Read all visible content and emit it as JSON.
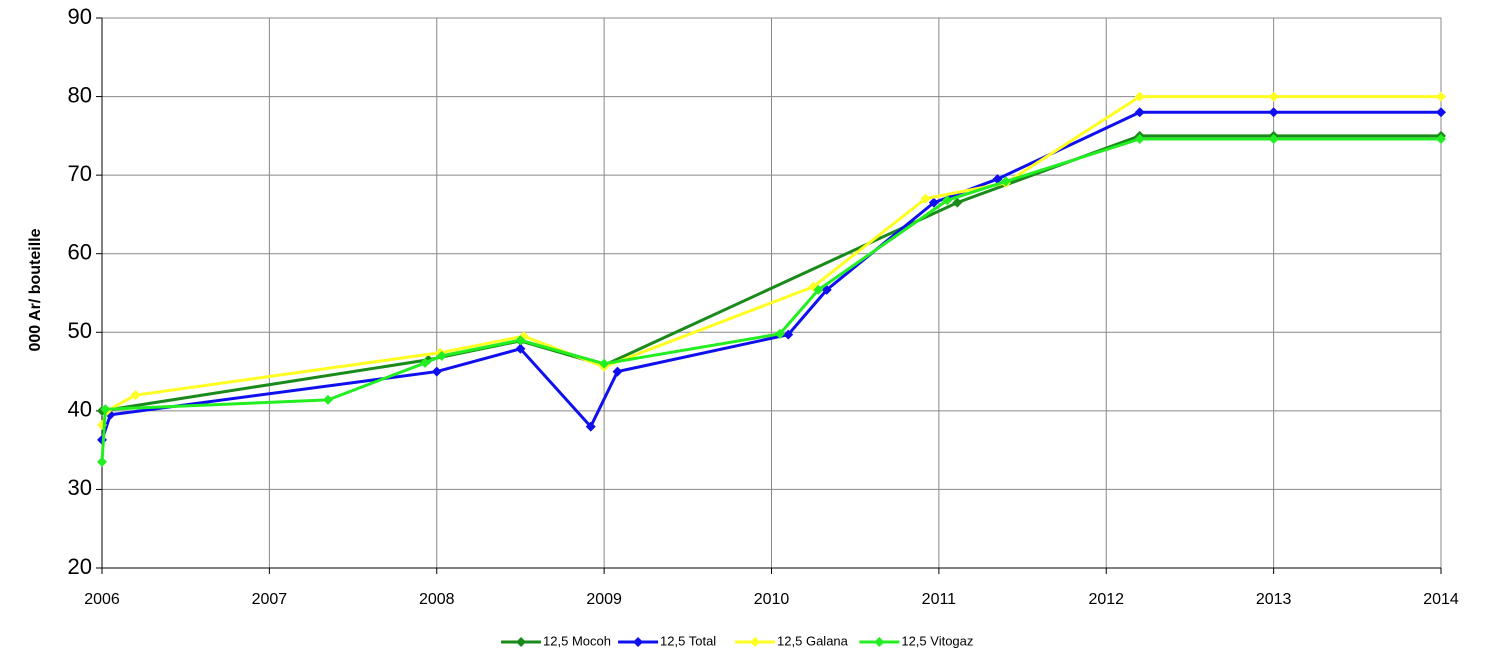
{
  "chart_data": {
    "type": "line",
    "ylabel": "000 Ar/ bouteille",
    "xlim": [
      2006,
      2014
    ],
    "xticks": [
      2006,
      2007,
      2008,
      2009,
      2010,
      2011,
      2012,
      2013,
      2014
    ],
    "ylim": [
      20,
      90
    ],
    "yticks": [
      20,
      30,
      40,
      50,
      60,
      70,
      80,
      90
    ],
    "grid": true,
    "legend": "bottom",
    "series": [
      {
        "name": "12,5 Mocoh",
        "color": "#1a8a1a",
        "x": [
          2006.0,
          2007.95,
          2008.5,
          2009.0,
          2011.11,
          2012.2,
          2013.0,
          2014.0
        ],
        "values": [
          40,
          46.5,
          48.9,
          45.8,
          66.5,
          75,
          75,
          75
        ]
      },
      {
        "name": "12,5 Total",
        "color": "#1010ee",
        "x": [
          2006.0,
          2006.05,
          2008.0,
          2008.5,
          2008.92,
          2009.08,
          2010.1,
          2010.33,
          2010.97,
          2011.35,
          2012.2,
          2013.0,
          2014.0
        ],
        "values": [
          36.3,
          39.5,
          45,
          47.9,
          38,
          45,
          49.7,
          55.4,
          66.5,
          69.5,
          78,
          78,
          78
        ]
      },
      {
        "name": "12,5 Galana",
        "color": "#ffff22",
        "x": [
          2006.0,
          2006.03,
          2006.2,
          2008.02,
          2008.52,
          2009.0,
          2010.25,
          2010.92,
          2011.4,
          2012.2,
          2013.0,
          2014.0
        ],
        "values": [
          38.2,
          40,
          42,
          47.4,
          49.5,
          45.6,
          55.8,
          67,
          69,
          80,
          80,
          80
        ]
      },
      {
        "name": "12,5 Vitogaz",
        "color": "#22ee22",
        "x": [
          2006.0,
          2006.02,
          2007.35,
          2007.93,
          2008.03,
          2008.5,
          2009.0,
          2010.05,
          2010.28,
          2011.05,
          2011.4,
          2012.2,
          2013.0,
          2014.0
        ],
        "values": [
          33.5,
          40.2,
          41.4,
          46.1,
          47,
          49,
          46,
          49.8,
          55.4,
          66.8,
          69.2,
          74.6,
          74.6,
          74.6
        ]
      }
    ]
  }
}
